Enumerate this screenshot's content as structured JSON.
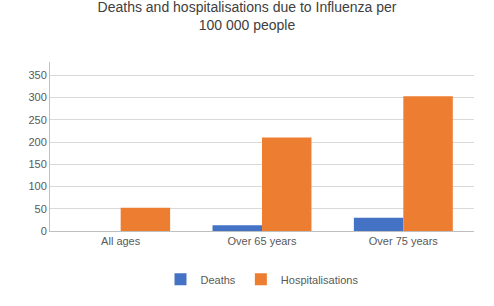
{
  "chart_data": {
    "type": "bar",
    "title": "Deaths and hospitalisations due to Influenza per\n100 000 people",
    "categories": [
      "All ages",
      "Over 65 years",
      "Over 75 years"
    ],
    "series": [
      {
        "name": "Deaths",
        "color": "#4472C4",
        "values": [
          0,
          13,
          30
        ]
      },
      {
        "name": "Hospitalisations",
        "color": "#ED7D31",
        "values": [
          52,
          210,
          303
        ]
      }
    ],
    "ylim": [
      0,
      380
    ],
    "yticks": [
      0,
      50,
      100,
      150,
      200,
      250,
      300,
      350
    ],
    "grid": true,
    "legend": "bottom"
  }
}
